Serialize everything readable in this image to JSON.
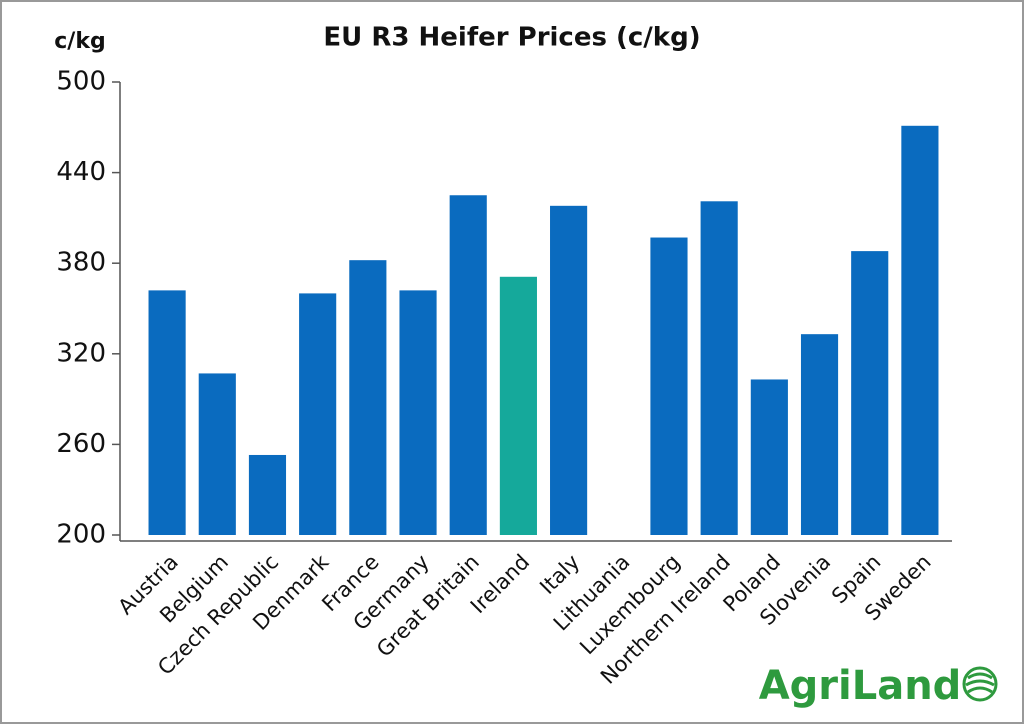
{
  "chart_data": {
    "type": "bar",
    "title": "EU R3 Heifer Prices (c/kg)",
    "y_label": "c/kg",
    "categories": [
      "Austria",
      "Belgium",
      "Czech Republic",
      "Denmark",
      "France",
      "Germany",
      "Great Britain",
      "Ireland",
      "Italy",
      "Lithuania",
      "Luxembourg",
      "Northern Ireland",
      "Poland",
      "Slovenia",
      "Spain",
      "Sweden"
    ],
    "values": [
      362,
      307,
      253,
      360,
      382,
      362,
      425,
      371,
      418,
      null,
      397,
      421,
      303,
      333,
      388,
      471
    ],
    "colors": [
      "#0a6bbf",
      "#0a6bbf",
      "#0a6bbf",
      "#0a6bbf",
      "#0a6bbf",
      "#0a6bbf",
      "#0a6bbf",
      "#15a99b",
      "#0a6bbf",
      "#0a6bbf",
      "#0a6bbf",
      "#0a6bbf",
      "#0a6bbf",
      "#0a6bbf",
      "#0a6bbf",
      "#0a6bbf"
    ],
    "ylim": [
      200,
      500
    ],
    "yticks": [
      200,
      260,
      320,
      380,
      440,
      500
    ],
    "grid": false
  },
  "logo": "AgriLand"
}
